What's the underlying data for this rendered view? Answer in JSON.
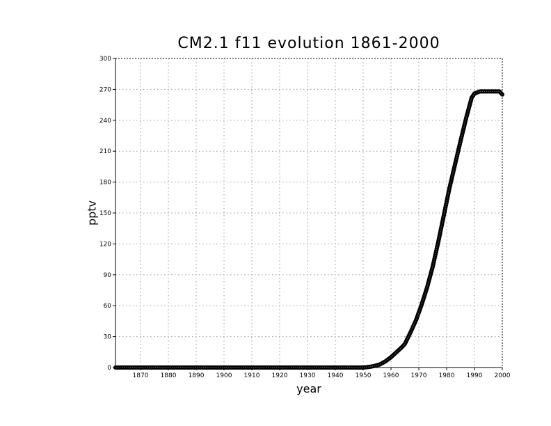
{
  "chart_data": {
    "type": "line",
    "title": "CM2.1 f11 evolution 1861-2000",
    "xlabel": "year",
    "ylabel": "pptv",
    "xlim": [
      1861,
      2000
    ],
    "ylim": [
      0,
      300
    ],
    "x_ticks": [
      1870,
      1880,
      1890,
      1900,
      1910,
      1920,
      1930,
      1940,
      1950,
      1960,
      1970,
      1980,
      1990,
      2000
    ],
    "y_ticks": [
      0,
      30,
      60,
      90,
      120,
      150,
      180,
      210,
      240,
      270,
      300
    ],
    "grid": true,
    "line_color": "#000000",
    "series": [
      {
        "x": [
          1861,
          1950,
          1952,
          1954,
          1956,
          1958,
          1960,
          1962,
          1964,
          1965,
          1967,
          1969,
          1971,
          1973,
          1975,
          1977,
          1979,
          1981,
          1983,
          1985,
          1987,
          1989,
          1990,
          1992,
          1995,
          1999,
          2000
        ],
        "y": [
          0,
          0,
          0.5,
          1.5,
          3,
          6,
          10,
          15,
          20,
          23,
          34,
          46,
          61,
          78,
          98,
          122,
          148,
          174,
          197,
          220,
          242,
          262,
          266,
          268,
          268,
          268,
          265
        ]
      }
    ]
  }
}
